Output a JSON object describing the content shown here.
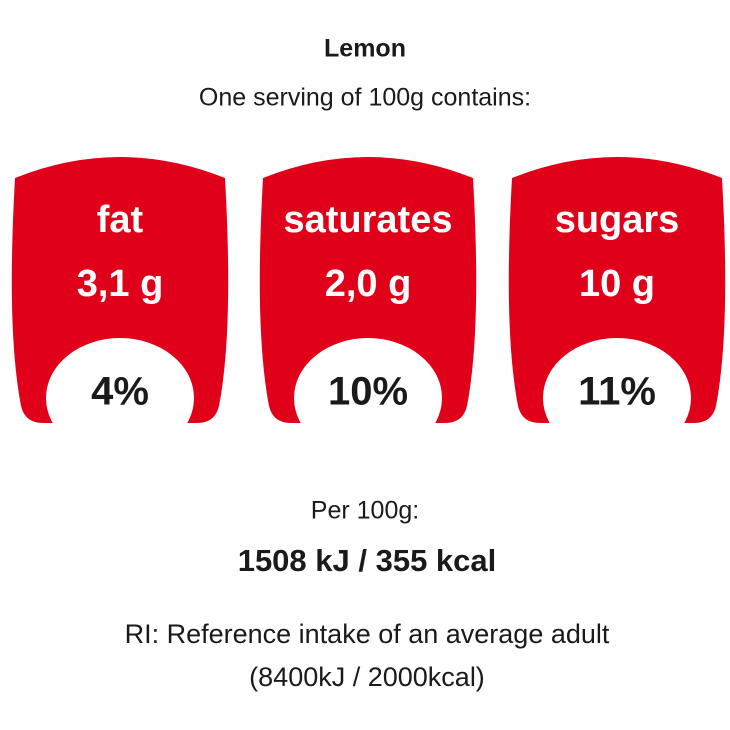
{
  "header": {
    "title": "Lemon",
    "subtitle": "One serving of 100g contains:"
  },
  "nutrients": [
    {
      "name": "fat",
      "amount": "3,1 g",
      "percent": "4%"
    },
    {
      "name": "saturates",
      "amount": "2,0 g",
      "percent": "10%"
    },
    {
      "name": "sugars",
      "amount": "10 g",
      "percent": "11%"
    }
  ],
  "per_label": "Per 100g:",
  "energy": "1508 kJ / 355 kcal",
  "reference": [
    "RI: Reference intake of an average adult",
    "(8400kJ / 2000kcal)"
  ]
}
